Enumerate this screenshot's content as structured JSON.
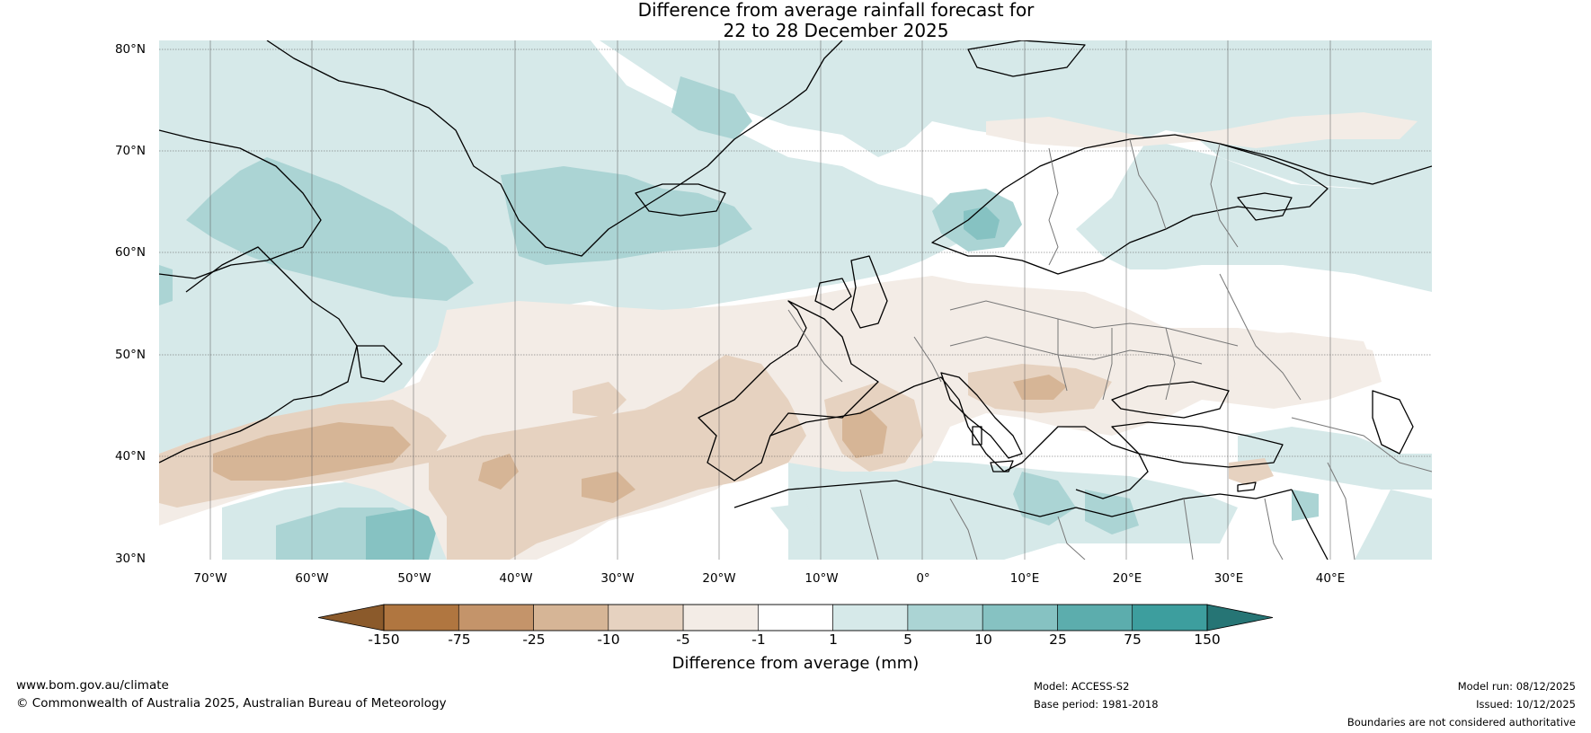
{
  "title": {
    "line1": "Difference from average rainfall forecast for",
    "line2": "22 to 28 December 2025"
  },
  "axes": {
    "lat_labels": [
      "80°N",
      "70°N",
      "60°N",
      "50°N",
      "40°N",
      "30°N"
    ],
    "lon_labels": [
      "70°W",
      "60°W",
      "50°W",
      "40°W",
      "30°W",
      "20°W",
      "10°W",
      "0°",
      "10°E",
      "20°E",
      "30°E",
      "40°E"
    ],
    "lat_range": [
      30,
      81
    ],
    "lon_range": [
      -75,
      50
    ]
  },
  "colorbar": {
    "title": "Difference from average (mm)",
    "labels": [
      "-150",
      "-75",
      "-25",
      "-10",
      "-5",
      "-1",
      "1",
      "5",
      "10",
      "25",
      "75",
      "150"
    ],
    "colors": [
      "#b07640",
      "#c4946a",
      "#d6b596",
      "#e6d2c0",
      "#f3ece6",
      "#ffffff",
      "#d6e9e9",
      "#abd4d4",
      "#86c2c2",
      "#5cadad",
      "#3d9e9e"
    ],
    "extend_low_color": "#8b5a2b",
    "extend_high_color": "#267575"
  },
  "footer": {
    "website": "www.bom.gov.au/climate",
    "copyright": "© Commonwealth of Australia 2025, Australian Bureau of Meteorology",
    "model": "Model: ACCESS-S2",
    "base_period": "Base period: 1981-2018",
    "model_run": "Model run: 08/12/2025",
    "issued": "Issued: 10/12/2025",
    "disclaimer": "Boundaries are not considered authoritative"
  }
}
